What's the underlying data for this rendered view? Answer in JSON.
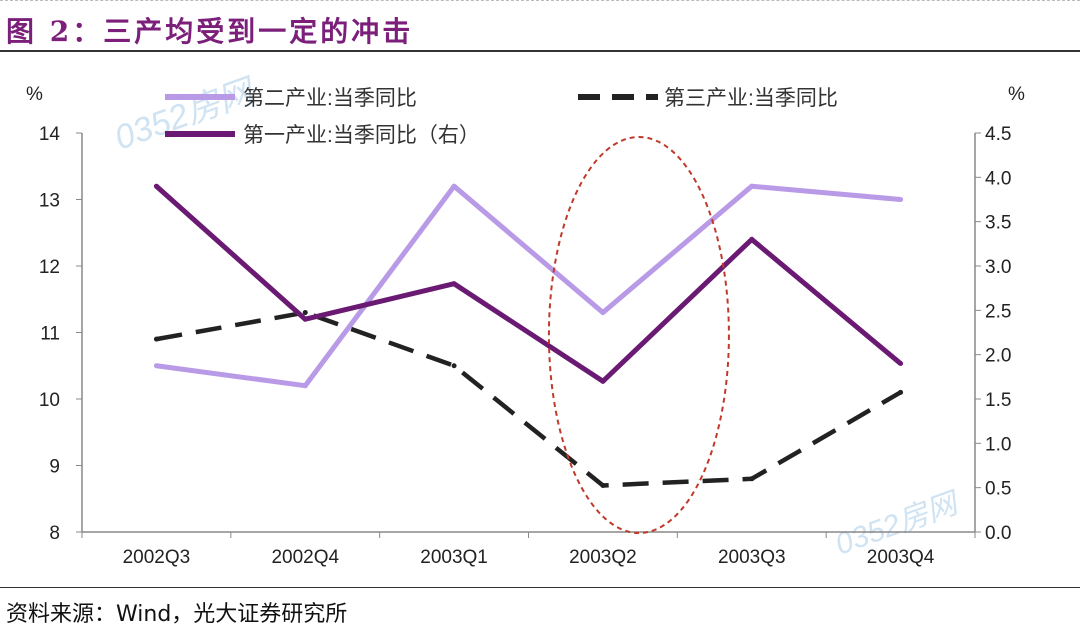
{
  "title": "图 2：三产均受到一定的冲击",
  "source": "资料来源：Wind，光大证券研究所",
  "watermark": "0352房网",
  "chart_data": {
    "type": "line",
    "categories": [
      "2002Q3",
      "2002Q4",
      "2003Q1",
      "2003Q2",
      "2003Q3",
      "2003Q4"
    ],
    "y_left": {
      "label": "%",
      "range": [
        8,
        14
      ],
      "ticks": [
        "8",
        "9",
        "10",
        "11",
        "12",
        "13",
        "14"
      ]
    },
    "y_right": {
      "label": "%",
      "range": [
        0,
        4.5
      ],
      "ticks": [
        "0.0",
        "0.5",
        "1.0",
        "1.5",
        "2.0",
        "2.5",
        "3.0",
        "3.5",
        "4.0",
        "4.5"
      ]
    },
    "grid": false,
    "legend_position": "top",
    "series": [
      {
        "name": "第二产业:当季同比",
        "axis": "left",
        "color": "#b99ae6",
        "style": "solid",
        "values": [
          10.5,
          10.2,
          13.2,
          11.3,
          13.2,
          13.0
        ]
      },
      {
        "name": "第三产业:当季同比",
        "axis": "left",
        "color": "#222222",
        "style": "dashed",
        "values": [
          10.9,
          11.3,
          10.5,
          8.7,
          8.8,
          10.1
        ]
      },
      {
        "name": "第一产业:当季同比（右）",
        "axis": "right",
        "color": "#6a1a72",
        "style": "solid",
        "values": [
          3.9,
          2.4,
          2.8,
          1.7,
          3.3,
          1.9
        ]
      }
    ],
    "annotation": {
      "type": "ellipse",
      "color": "#c0392b",
      "style": "dashed",
      "category": "2003Q2"
    }
  }
}
